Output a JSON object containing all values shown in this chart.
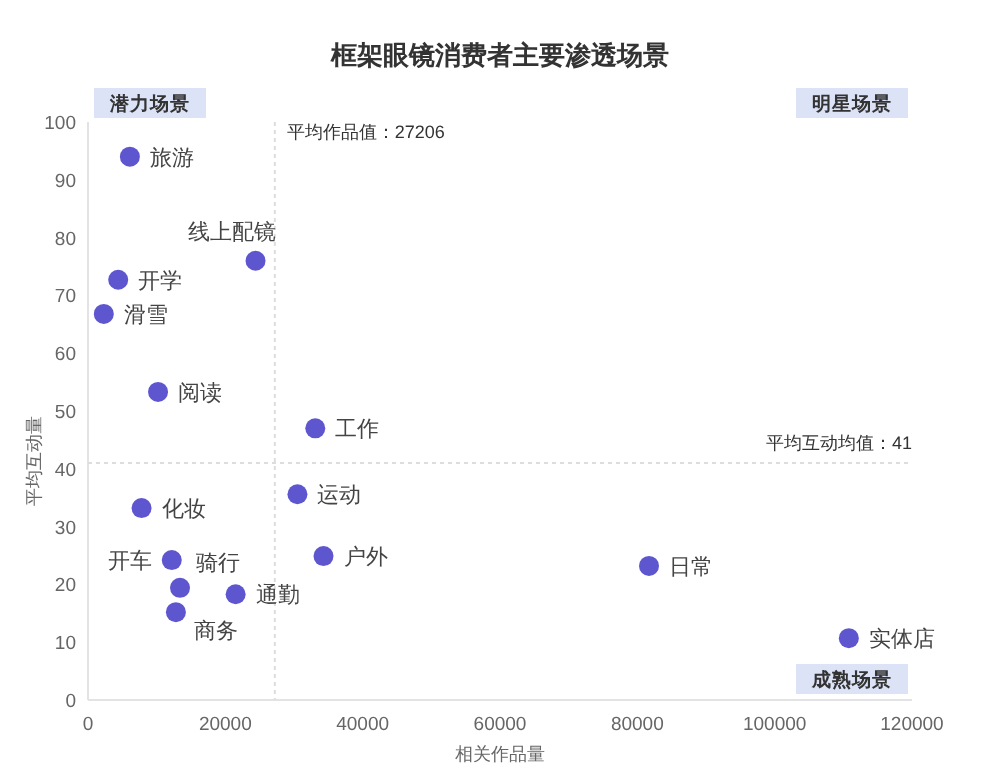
{
  "chart_data": {
    "type": "scatter",
    "title": "框架眼镜消费者主要渗透场景",
    "xlabel": "相关作品量",
    "ylabel": "平均互动量",
    "xlim": [
      0,
      120000
    ],
    "ylim": [
      0,
      100
    ],
    "xticks": [
      0,
      20000,
      40000,
      60000,
      80000,
      100000,
      120000
    ],
    "yticks": [
      0,
      10,
      20,
      30,
      40,
      50,
      60,
      70,
      80,
      90,
      100
    ],
    "grid": false,
    "marker": "circle",
    "series": [
      {
        "color": "#5d56cf",
        "x": [
          6100,
          24400,
          4400,
          2300,
          10200,
          33100,
          7800,
          30500,
          34300,
          12200,
          13400,
          21500,
          12800,
          81700,
          110800
        ],
        "values": [
          94,
          76,
          72.7,
          66.8,
          53.3,
          47,
          33.2,
          35.6,
          24.9,
          24.2,
          19.4,
          18.3,
          15.2,
          23.2,
          10.7
        ],
        "value_labels": [
          "旅游",
          "线上配镜",
          "开学",
          "滑雪",
          "阅读",
          "工作",
          "化妆",
          "运动",
          "户外",
          "开车",
          "骑行",
          "通勤",
          "商务",
          "日常",
          "实体店"
        ]
      }
    ],
    "ref_lines": [
      {
        "axis": "x",
        "value": 27206,
        "label": "平均作品值：27206",
        "color": "#dddddd",
        "line_style": "dotted"
      },
      {
        "axis": "y",
        "value": 41,
        "label": "平均互动均值：41",
        "color": "#dddddd",
        "line_style": "dotted"
      }
    ],
    "annotations": [
      "潜力场景",
      "明星场景",
      "成熟场景"
    ]
  }
}
